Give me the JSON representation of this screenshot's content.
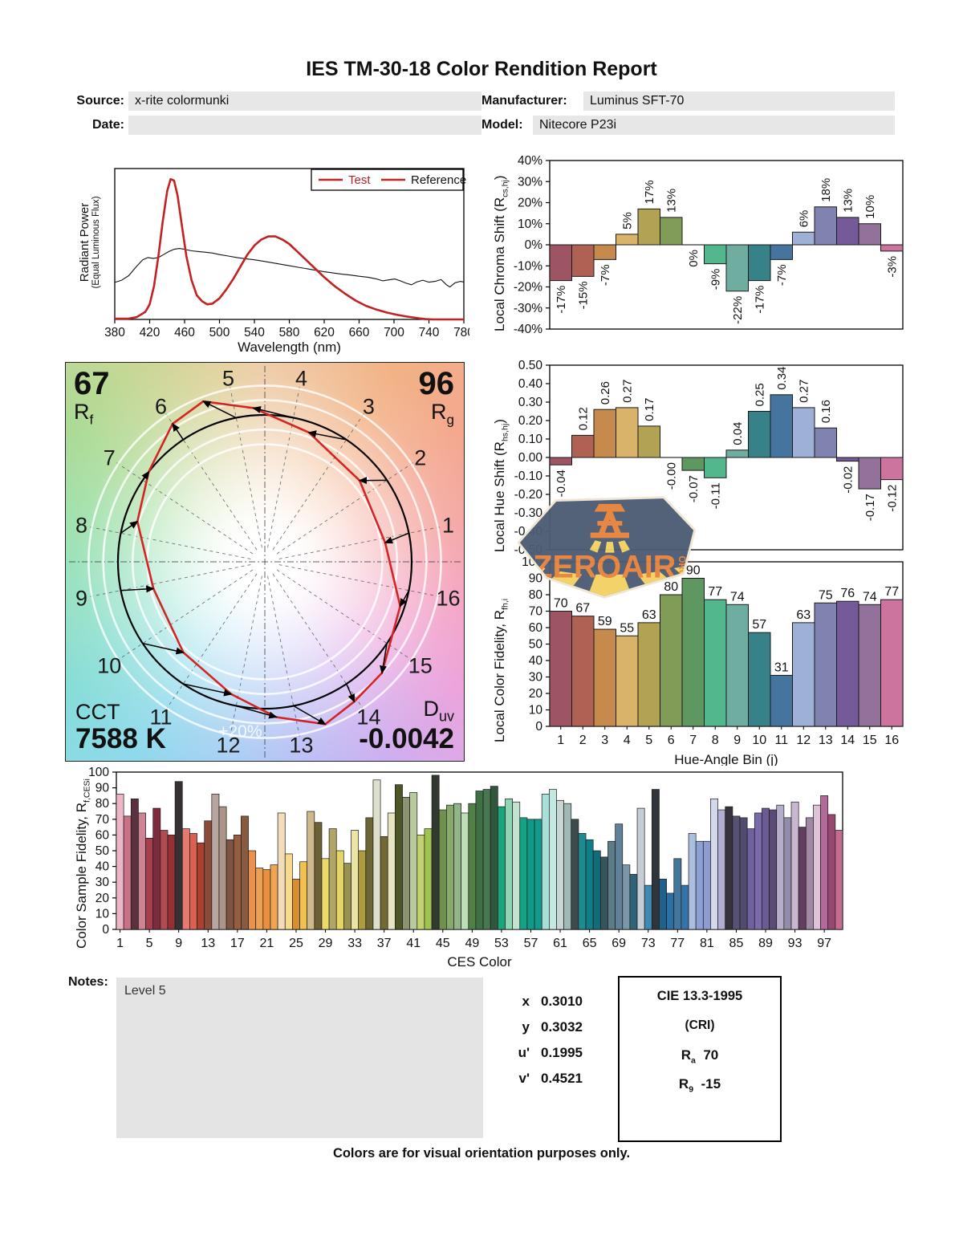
{
  "title": "IES TM-30-18 Color Rendition Report",
  "info": {
    "source_label": "Source:",
    "source": "x-rite colormunki",
    "date_label": "Date:",
    "date": "",
    "manufacturer_label": "Manufacturer:",
    "manufacturer": "Luminus SFT-70",
    "model_label": "Model:",
    "model": "Nitecore P23i"
  },
  "bin_colors": [
    "#9e5563",
    "#af6253",
    "#c58a4c",
    "#d9b36a",
    "#b2a354",
    "#809c57",
    "#5f9761",
    "#53b78e",
    "#6fada0",
    "#378289",
    "#45759f",
    "#9fb0d6",
    "#8083b0",
    "#755a99",
    "#92719b",
    "#cc739e"
  ],
  "chart_data": [
    {
      "type": "line",
      "name": "spectral-power-distribution",
      "xlabel": "Wavelength (nm)",
      "ylabel_line1": "Radiant Power",
      "ylabel_line2": "(Equal Luminous Flux)",
      "xlim": [
        380,
        780
      ],
      "x_ticks": [
        380,
        420,
        460,
        500,
        540,
        580,
        620,
        660,
        700,
        740,
        780
      ],
      "legend": [
        "Test",
        "Reference"
      ],
      "series": [
        {
          "name": "Test",
          "color": "#c32222",
          "points": [
            [
              380,
              0.005
            ],
            [
              395,
              0.005
            ],
            [
              405,
              0.015
            ],
            [
              415,
              0.05
            ],
            [
              420,
              0.1
            ],
            [
              425,
              0.22
            ],
            [
              430,
              0.42
            ],
            [
              435,
              0.65
            ],
            [
              440,
              0.85
            ],
            [
              444,
              0.93
            ],
            [
              448,
              0.92
            ],
            [
              452,
              0.82
            ],
            [
              457,
              0.62
            ],
            [
              462,
              0.42
            ],
            [
              468,
              0.26
            ],
            [
              474,
              0.16
            ],
            [
              480,
              0.12
            ],
            [
              486,
              0.1
            ],
            [
              492,
              0.105
            ],
            [
              500,
              0.14
            ],
            [
              508,
              0.2
            ],
            [
              516,
              0.27
            ],
            [
              524,
              0.35
            ],
            [
              532,
              0.43
            ],
            [
              540,
              0.49
            ],
            [
              548,
              0.53
            ],
            [
              556,
              0.55
            ],
            [
              564,
              0.55
            ],
            [
              572,
              0.53
            ],
            [
              580,
              0.5
            ],
            [
              590,
              0.445
            ],
            [
              600,
              0.39
            ],
            [
              610,
              0.335
            ],
            [
              620,
              0.28
            ],
            [
              632,
              0.22
            ],
            [
              644,
              0.17
            ],
            [
              656,
              0.125
            ],
            [
              668,
              0.09
            ],
            [
              680,
              0.065
            ],
            [
              692,
              0.045
            ],
            [
              704,
              0.03
            ],
            [
              716,
              0.018
            ],
            [
              728,
              0.008
            ],
            [
              736,
              0.002
            ],
            [
              745,
              0.0
            ],
            [
              780,
              0.0
            ]
          ]
        },
        {
          "name": "Reference",
          "color": "#111111",
          "points": [
            [
              380,
              0.245
            ],
            [
              388,
              0.26
            ],
            [
              396,
              0.29
            ],
            [
              404,
              0.345
            ],
            [
              412,
              0.395
            ],
            [
              418,
              0.41
            ],
            [
              424,
              0.405
            ],
            [
              430,
              0.41
            ],
            [
              436,
              0.43
            ],
            [
              442,
              0.45
            ],
            [
              448,
              0.465
            ],
            [
              454,
              0.47
            ],
            [
              460,
              0.465
            ],
            [
              468,
              0.455
            ],
            [
              476,
              0.45
            ],
            [
              484,
              0.445
            ],
            [
              492,
              0.44
            ],
            [
              500,
              0.43
            ],
            [
              510,
              0.42
            ],
            [
              520,
              0.41
            ],
            [
              530,
              0.402
            ],
            [
              540,
              0.395
            ],
            [
              550,
              0.386
            ],
            [
              560,
              0.376
            ],
            [
              570,
              0.366
            ],
            [
              580,
              0.356
            ],
            [
              590,
              0.346
            ],
            [
              600,
              0.336
            ],
            [
              610,
              0.326
            ],
            [
              620,
              0.316
            ],
            [
              630,
              0.308
            ],
            [
              640,
              0.3
            ],
            [
              650,
              0.294
            ],
            [
              660,
              0.286
            ],
            [
              670,
              0.28
            ],
            [
              680,
              0.268
            ],
            [
              687,
              0.256
            ],
            [
              694,
              0.262
            ],
            [
              701,
              0.268
            ],
            [
              708,
              0.254
            ],
            [
              714,
              0.24
            ],
            [
              720,
              0.23
            ],
            [
              726,
              0.248
            ],
            [
              733,
              0.26
            ],
            [
              740,
              0.247
            ],
            [
              747,
              0.252
            ],
            [
              754,
              0.264
            ],
            [
              760,
              0.23
            ],
            [
              764,
              0.215
            ],
            [
              770,
              0.243
            ],
            [
              776,
              0.252
            ],
            [
              780,
              0.248
            ]
          ]
        }
      ]
    },
    {
      "type": "color-vector-graphic",
      "name": "color-vector-graphic",
      "rf_label": "R",
      "rf_sub": "f",
      "rf": "67",
      "rg_label": "R",
      "rg_sub": "g",
      "rg": "96",
      "cct_label": "CCT",
      "cct": "7588 K",
      "duv_label": "D",
      "duv_sub": "uv",
      "duv": "-0.0042",
      "ring_label": "+20%",
      "bins": [
        1,
        2,
        3,
        4,
        5,
        6,
        7,
        8,
        9,
        10,
        11,
        12,
        13,
        14,
        15,
        16
      ],
      "chroma_shift_pct": [
        -17,
        -15,
        -7,
        5,
        17,
        13,
        0,
        -9,
        -22,
        -17,
        -7,
        6,
        18,
        13,
        10,
        -3
      ],
      "hue_shift": [
        -0.04,
        0.12,
        0.26,
        0.27,
        0.17,
        0,
        -0.07,
        -0.11,
        0.04,
        0.25,
        0.34,
        0.27,
        0.16,
        -0.02,
        -0.17,
        -0.12
      ]
    },
    {
      "type": "bar",
      "name": "local-chroma-shift",
      "ylabel_main": "Local Chroma Shift (R",
      "ylabel_sub": "cs,hj",
      "ylabel_close": ")",
      "ylim": [
        -40,
        40
      ],
      "y_ticks": [
        "40%",
        "30%",
        "20%",
        "10%",
        "0%",
        "-10%",
        "-20%",
        "-30%",
        "-40%"
      ],
      "categories": [
        1,
        2,
        3,
        4,
        5,
        6,
        7,
        8,
        9,
        10,
        11,
        12,
        13,
        14,
        15,
        16
      ],
      "values": [
        -17,
        -15,
        -7,
        5,
        17,
        13,
        0,
        -9,
        -22,
        -17,
        -7,
        6,
        18,
        13,
        10,
        -3
      ],
      "labels": [
        "-17%",
        "-15%",
        "-7%",
        "5%",
        "17%",
        "13%",
        "0%",
        "-9%",
        "-22%",
        "-17%",
        "-7%",
        "6%",
        "18%",
        "13%",
        "10%",
        "-3%"
      ]
    },
    {
      "type": "bar",
      "name": "local-hue-shift",
      "ylabel_main": "Local Hue Shift (R",
      "ylabel_sub": "hs,hj",
      "ylabel_close": ")",
      "ylim": [
        -0.5,
        0.5
      ],
      "y_ticks": [
        "0.50",
        "0.40",
        "0.30",
        "0.20",
        "0.10",
        "0.00",
        "-0.10",
        "-0.20",
        "-0.30",
        "-0.40",
        "-0.50"
      ],
      "categories": [
        1,
        2,
        3,
        4,
        5,
        6,
        7,
        8,
        9,
        10,
        11,
        12,
        13,
        14,
        15,
        16
      ],
      "values": [
        -0.04,
        0.12,
        0.26,
        0.27,
        0.17,
        0,
        -0.07,
        -0.11,
        0.04,
        0.25,
        0.34,
        0.27,
        0.16,
        -0.02,
        -0.17,
        -0.12
      ],
      "labels": [
        "-0.04",
        "0.12",
        "0.26",
        "0.27",
        "0.17",
        "-0.00",
        "-0.07",
        "-0.11",
        "0.04",
        "0.25",
        "0.34",
        "0.27",
        "0.16",
        "-0.02",
        "-0.17",
        "-0.12"
      ]
    },
    {
      "type": "bar",
      "name": "local-color-fidelity",
      "xlabel": "Hue-Angle Bin (j)",
      "ylabel_main": "Local Color Fidelity, R",
      "ylabel_sub": "fh,i",
      "ylabel_close": "",
      "ylim": [
        0,
        100
      ],
      "y_ticks": [
        "100",
        "90",
        "80",
        "70",
        "60",
        "50",
        "40",
        "30",
        "20",
        "10",
        "0"
      ],
      "categories": [
        1,
        2,
        3,
        4,
        5,
        6,
        7,
        8,
        9,
        10,
        11,
        12,
        13,
        14,
        15,
        16
      ],
      "values": [
        70,
        67,
        59,
        55,
        63,
        80,
        90,
        77,
        74,
        57,
        31,
        63,
        75,
        76,
        74,
        77
      ],
      "labels": [
        "70",
        "67",
        "59",
        "55",
        "63",
        "80",
        "90",
        "77",
        "74",
        "57",
        "31",
        "63",
        "75",
        "76",
        "74",
        "77"
      ]
    },
    {
      "type": "bar",
      "name": "color-sample-fidelity",
      "xlabel": "CES Color",
      "ylabel_main": "Color Sample Fidelity, R",
      "ylabel_sub": "f,CESi",
      "ylabel_close": "",
      "ylim": [
        0,
        100
      ],
      "y_ticks": [
        "100",
        "90",
        "80",
        "70",
        "60",
        "50",
        "40",
        "30",
        "20",
        "10",
        "0"
      ],
      "x_ticks": [
        1,
        5,
        9,
        13,
        17,
        21,
        25,
        29,
        33,
        37,
        41,
        45,
        49,
        53,
        57,
        61,
        65,
        69,
        73,
        77,
        81,
        85,
        89,
        93,
        97
      ],
      "values": [
        86,
        72,
        83,
        74,
        58,
        77,
        63,
        60,
        94,
        64,
        61,
        55,
        69,
        86,
        78,
        57,
        60,
        72,
        50,
        39,
        38,
        41,
        74,
        48,
        32,
        43,
        75,
        68,
        45,
        64,
        50,
        42,
        63,
        50,
        71,
        95,
        59,
        74,
        92,
        84,
        87,
        60,
        64,
        98,
        76,
        79,
        80,
        74,
        80,
        88,
        89,
        91,
        78,
        83,
        81,
        71,
        70,
        70,
        86,
        89,
        82,
        80,
        70,
        61,
        57,
        50,
        46,
        56,
        67,
        41,
        35,
        77,
        28,
        89,
        32,
        23,
        45,
        28,
        61,
        56,
        56,
        83,
        76,
        78,
        72,
        71,
        64,
        74,
        77,
        76,
        79,
        71,
        81,
        65,
        71,
        79,
        85,
        73,
        63
      ],
      "colors": [
        "#edb6c7",
        "#ca7186",
        "#5a323f",
        "#cd8394",
        "#a63f4d",
        "#7e2c3d",
        "#b04b51",
        "#963036",
        "#373134",
        "#e57b70",
        "#d96052",
        "#a84130",
        "#8b4b39",
        "#b7a6a0",
        "#ac9588",
        "#7e5341",
        "#945e43",
        "#8a5a40",
        "#e89251",
        "#eda04f",
        "#e9903f",
        "#f0a554",
        "#f2dcb9",
        "#f7da8d",
        "#d8902f",
        "#f0c151",
        "#cdb98a",
        "#6e6036",
        "#ebda6a",
        "#b1a565",
        "#e4d567",
        "#99924f",
        "#eae5a6",
        "#ac9c3d",
        "#6c6535",
        "#dddfcc",
        "#736930",
        "#e7e4c2",
        "#4d5627",
        "#8c9372",
        "#b8ca9d",
        "#c4d16f",
        "#a0c451",
        "#32392f",
        "#70904f",
        "#88aa6c",
        "#93b388",
        "#bbe0b7",
        "#508048",
        "#3f7045",
        "#477750",
        "#31553d",
        "#1aa67b",
        "#90d5b5",
        "#c0e4d0",
        "#16a184",
        "#109b88",
        "#129a8d",
        "#a9dfd7",
        "#c3e7e1",
        "#c8d7d3",
        "#a0b9b6",
        "#3d4b4d",
        "#1e8b90",
        "#0f7e86",
        "#126b76",
        "#36545d",
        "#5e7b89",
        "#60819a",
        "#7a96a8",
        "#2f6378",
        "#c4ced4",
        "#4089b2",
        "#2f353a",
        "#206089",
        "#2b6fa7",
        "#42769d",
        "#3673a9",
        "#aabfdf",
        "#8ca0d1",
        "#8d9dd4",
        "#d4d8eb",
        "#b1afd1",
        "#36333f",
        "#585174",
        "#504b6f",
        "#70609d",
        "#7b6bab",
        "#6c5b93",
        "#594b76",
        "#b6aeca",
        "#938caa",
        "#c8b7cf",
        "#603f60",
        "#a188a4",
        "#ddc3d8",
        "#b5699b",
        "#984970",
        "#c36b91"
      ]
    }
  ],
  "notes": {
    "label": "Notes:",
    "text": "Level 5"
  },
  "coords": {
    "rows": [
      {
        "label": "x",
        "value": "0.3010"
      },
      {
        "label": "y",
        "value": "0.3032"
      },
      {
        "label": "u'",
        "value": "0.1995"
      },
      {
        "label": "v'",
        "value": "0.4521"
      }
    ]
  },
  "cri": {
    "title": "CIE 13.3-1995",
    "subtitle": "(CRI)",
    "ra_base": "R",
    "ra_sub": "a",
    "ra_value": "70",
    "r9_base": "R",
    "r9_sub": "9",
    "r9_value": "-15"
  },
  "footer": "Colors are for visual orientation purposes only.",
  "watermark": {
    "name": "ZEROAIR",
    "org": "ORG"
  }
}
